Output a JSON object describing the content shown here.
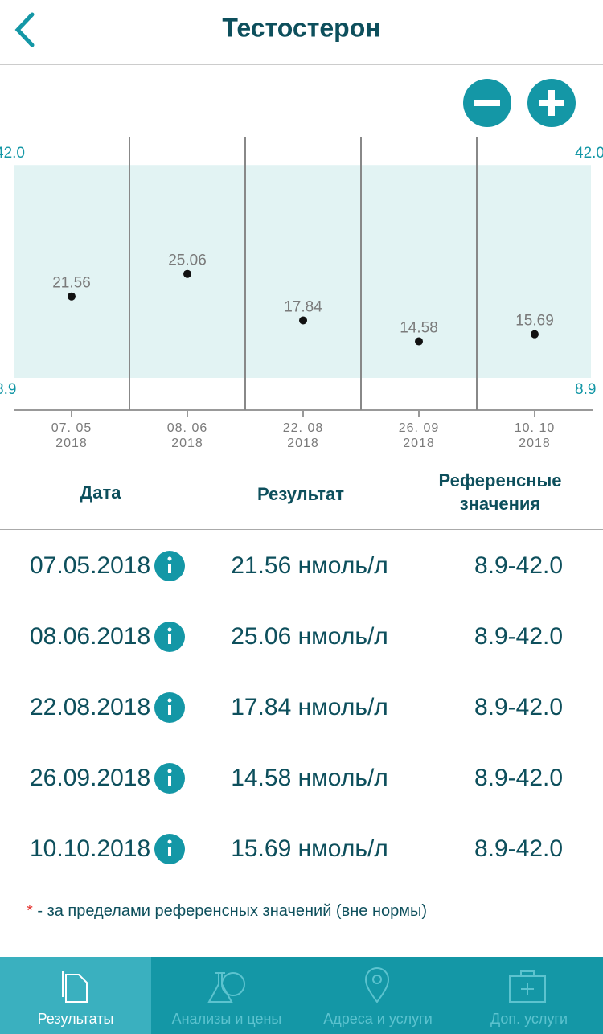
{
  "header": {
    "title": "Тестостерон"
  },
  "chart": {
    "type": "scatter",
    "categories": [
      {
        "day": "07. 05",
        "year": "2018"
      },
      {
        "day": "08. 06",
        "year": "2018"
      },
      {
        "day": "22. 08",
        "year": "2018"
      },
      {
        "day": "26. 09",
        "year": "2018"
      },
      {
        "day": "10. 10",
        "year": "2018"
      }
    ],
    "values": [
      21.56,
      25.06,
      17.84,
      14.58,
      15.69
    ],
    "reference": [
      {
        "value": 8.9,
        "label": "8.9"
      },
      {
        "value": 42.0,
        "label": "42.0"
      }
    ],
    "ylim": [
      3.9,
      46.4
    ]
  },
  "table": {
    "columns": [
      "Дата",
      "Результат",
      "Референсные значения"
    ],
    "rows": [
      [
        "07.05.2018",
        "21.56 нмоль/л",
        "8.9-42.0"
      ],
      [
        "08.06.2018",
        "25.06 нмоль/л",
        "8.9-42.0"
      ],
      [
        "22.08.2018",
        "17.84 нмоль/л",
        "8.9-42.0"
      ],
      [
        "26.09.2018",
        "14.58 нмоль/л",
        "8.9-42.0"
      ],
      [
        "10.10.2018",
        "15.69 нмоль/л",
        "8.9-42.0"
      ]
    ]
  },
  "footnote": {
    "mark": "*",
    "text": " - за пределами референсных значений (вне нормы)"
  },
  "tabs": [
    "Результаты",
    "Анализы и цены",
    "Адреса и услуги",
    "Доп. услуги"
  ]
}
